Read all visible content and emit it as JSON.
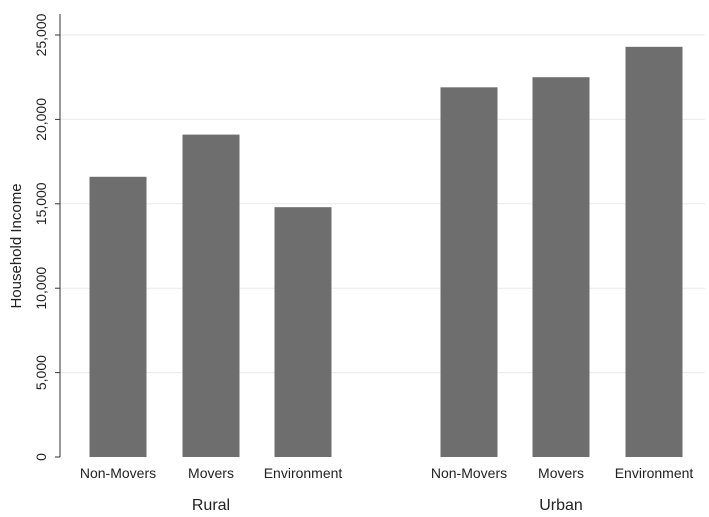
{
  "chart_data": {
    "type": "bar",
    "ylabel": "Household Income",
    "ylim": [
      0,
      25000
    ],
    "y_ticks": [
      0,
      5000,
      10000,
      15000,
      20000,
      25000
    ],
    "y_tick_labels": [
      "0",
      "5,000",
      "10,000",
      "15,000",
      "20,000",
      "25,000"
    ],
    "grid": true,
    "groups": [
      {
        "name": "Rural",
        "categories": [
          "Non-Movers",
          "Movers",
          "Environment"
        ],
        "values": [
          16600,
          19100,
          14800
        ]
      },
      {
        "name": "Urban",
        "categories": [
          "Non-Movers",
          "Movers",
          "Environment"
        ],
        "values": [
          21900,
          22500,
          24300
        ]
      }
    ],
    "colors": {
      "bar": "#6e6e6e",
      "grid": "#eaeaea",
      "axis": "#333333"
    }
  }
}
